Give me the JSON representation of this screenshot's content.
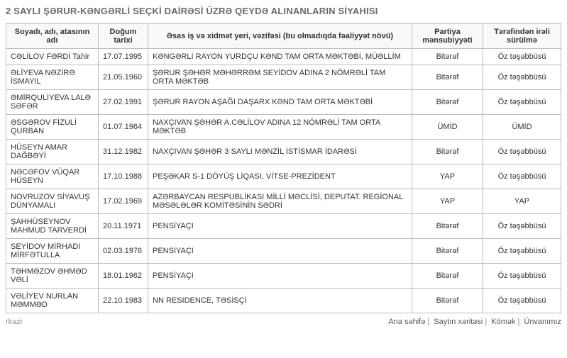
{
  "title": "2 SAYLI ŞƏRUR-KƏNGƏRLİ SEÇKİ DAİRƏSİ ÜZRƏ QEYDƏ ALINANLARIN SİYAHISI",
  "columns": {
    "name": "Soyadı, adı, atasının adı",
    "dob": "Doğum tarixi",
    "job": "Əsas iş və xidmət yeri, vəzifəsi (bu olmadıqda fəaliyyət növü)",
    "party": "Partiya mənsubiyyəti",
    "nominated": "Tərəfindən irəli sürülmə"
  },
  "rows": [
    {
      "name": "CƏLİLOV FƏRDİ Tahir",
      "dob": "17.07.1995",
      "job": "KƏNGƏRLİ RAYON YURDÇU KƏND TAM ORTA MƏKTƏBİ, MÜƏLLİM",
      "party": "Bitərəf",
      "nominated": "Öz təşəbbüsü"
    },
    {
      "name": "ƏLİYEVA NƏZİRƏ İSMAYIL",
      "dob": "21.05.1960",
      "job": "ŞƏRUR ŞƏHƏR MƏHƏRRƏM SEYİDOV ADINA 2 NÖMRƏLİ TAM ORTA MƏKTƏB",
      "party": "Bitərəf",
      "nominated": "Öz təşəbbüsü"
    },
    {
      "name": "ƏMİRQULİYEVA LALƏ SƏFƏR",
      "dob": "27.02.1991",
      "job": "ŞƏRUR RAYON AŞAĞI DAŞARX KƏND TAM ORTA MƏKTƏBİ",
      "party": "Bitərəf",
      "nominated": "Öz təşəbbüsü"
    },
    {
      "name": "ƏSGƏROV FİZULİ QURBAN",
      "dob": "01.07.1964",
      "job": "NAXÇIVAN ŞƏHƏR A.CƏLİLOV ADINA 12 NÖMRƏLİ TAM ORTA MƏKTƏB",
      "party": "ÜMİD",
      "nominated": "ÜMİD"
    },
    {
      "name": "HÜSEYN AMAR DAĞBƏYİ",
      "dob": "31.12.1982",
      "job": "NAXÇIVAN ŞƏHƏR 3 SAYLI MƏNZİL İSTİSMAR İDARƏSİ",
      "party": "Bitərəf",
      "nominated": "Öz təşəbbüsü"
    },
    {
      "name": "NƏCƏFOV VÜQAR HÜSEYN",
      "dob": "17.10.1988",
      "job": "PEŞƏKAR S-1 DÖYÜŞ LİQASI, VİTSE-PREZİDENT",
      "party": "YAP",
      "nominated": "Öz təşəbbüsü"
    },
    {
      "name": "NOVRUZOV SİYAVUŞ DÜNYAMALI",
      "dob": "17.02.1969",
      "job": "AZƏRBAYCAN RESPUBLİKASI MİLLİ MƏCLİSİ, DEPUTAT. REGİONAL MƏSƏLƏLƏR KOMİTƏSİNİN SƏDRİ",
      "party": "YAP",
      "nominated": "YAP"
    },
    {
      "name": "ŞAHHÜSEYNOV MAHMUD TARVERDİ",
      "dob": "20.11.1971",
      "job": "PENSİYAÇI",
      "party": "Bitərəf",
      "nominated": "Öz təşəbbüsü"
    },
    {
      "name": "SEYİDOV MİRHADI MİRFƏTULLA",
      "dob": "02.03.1976",
      "job": "PENSİYAÇI",
      "party": "Bitərəf",
      "nominated": "Öz təşəbbüsü"
    },
    {
      "name": "TƏHMƏZOV ƏHMƏD VƏLİ",
      "dob": "18.01.1962",
      "job": "PENSİYAÇI",
      "party": "Bitərəf",
      "nominated": "Öz təşəbbüsü"
    },
    {
      "name": "VƏLİYEV NURLAN MƏMMƏD",
      "dob": "22.10.1983",
      "job": "NN RESIDENCE, TƏSİSÇİ",
      "party": "Bitərəf",
      "nominated": "Öz təşəbbüsü"
    }
  ],
  "footer": {
    "left": "rkəzi",
    "links": [
      "Ana səhifə",
      "Saytın xəritəsi",
      "Kömək",
      "Ünvanımız"
    ]
  }
}
